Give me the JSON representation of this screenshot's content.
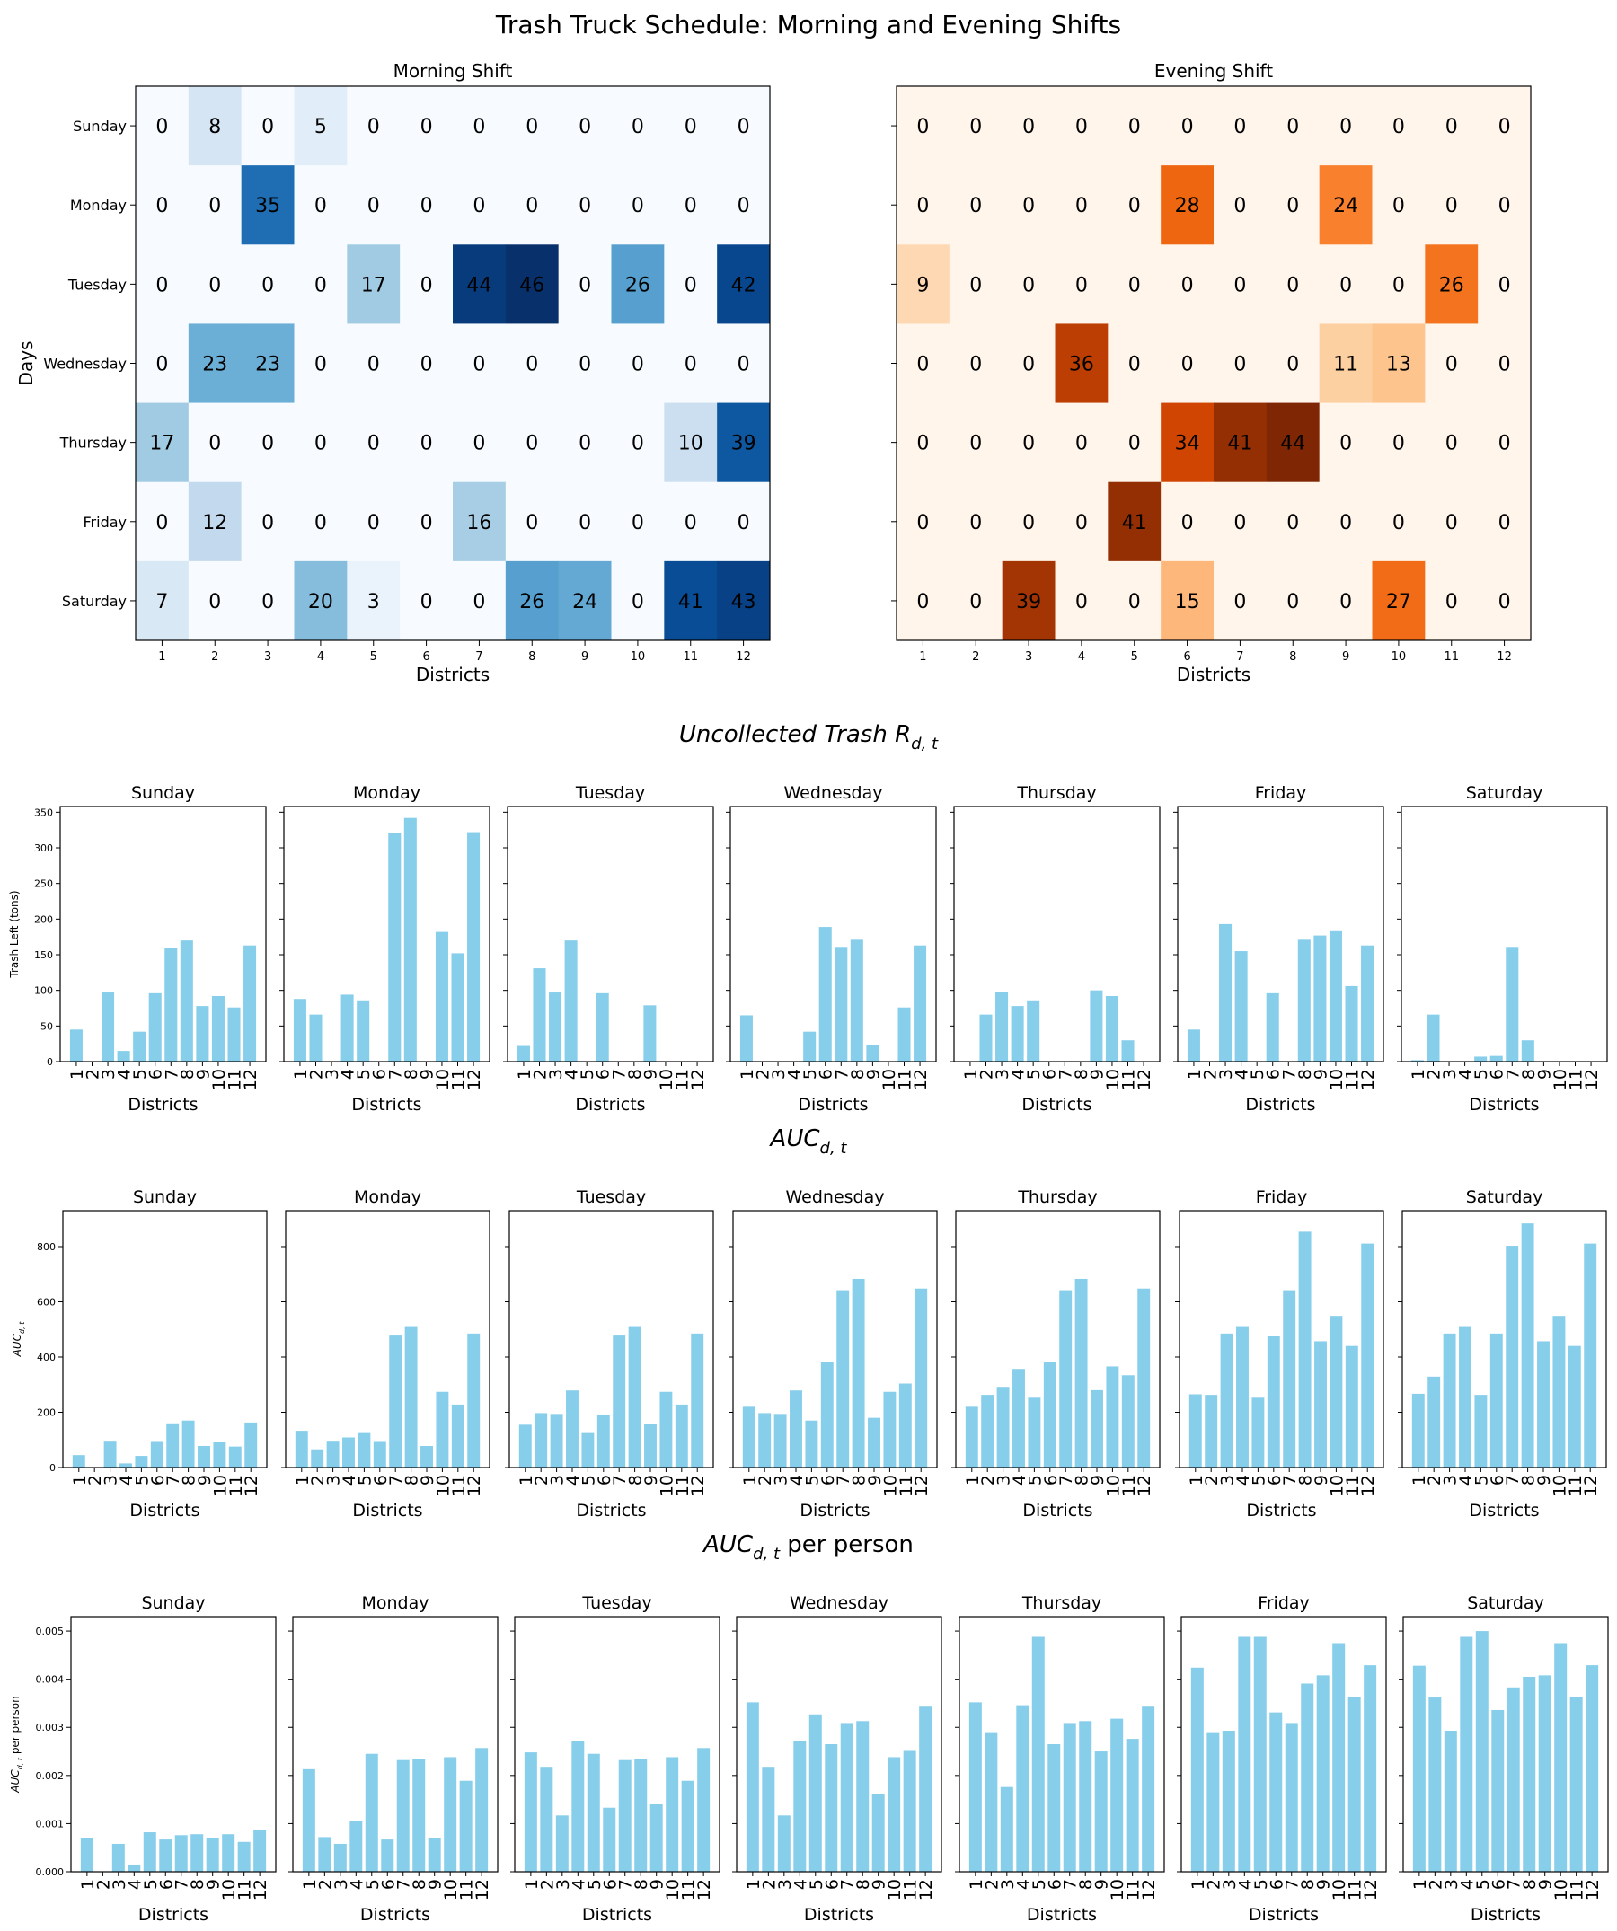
{
  "figure": {
    "title": "Trash Truck Schedule: Morning and Evening Shifts",
    "districts": [
      "1",
      "2",
      "3",
      "4",
      "5",
      "6",
      "7",
      "8",
      "9",
      "10",
      "11",
      "12"
    ],
    "days": [
      "Sunday",
      "Monday",
      "Tuesday",
      "Wednesday",
      "Thursday",
      "Friday",
      "Saturday"
    ]
  },
  "chart_data": [
    {
      "type": "heatmap",
      "title": "Morning Shift",
      "xlabel": "Districts",
      "ylabel": "Days",
      "colormap": "Blues",
      "vmax": 46,
      "rows": [
        "Sunday",
        "Monday",
        "Tuesday",
        "Wednesday",
        "Thursday",
        "Friday",
        "Saturday"
      ],
      "cols": [
        "1",
        "2",
        "3",
        "4",
        "5",
        "6",
        "7",
        "8",
        "9",
        "10",
        "11",
        "12"
      ],
      "values": [
        [
          0,
          8,
          0,
          5,
          0,
          0,
          0,
          0,
          0,
          0,
          0,
          0
        ],
        [
          0,
          0,
          35,
          0,
          0,
          0,
          0,
          0,
          0,
          0,
          0,
          0
        ],
        [
          0,
          0,
          0,
          0,
          17,
          0,
          44,
          46,
          0,
          26,
          0,
          42
        ],
        [
          0,
          23,
          23,
          0,
          0,
          0,
          0,
          0,
          0,
          0,
          0,
          0
        ],
        [
          17,
          0,
          0,
          0,
          0,
          0,
          0,
          0,
          0,
          0,
          10,
          39
        ],
        [
          0,
          12,
          0,
          0,
          0,
          0,
          16,
          0,
          0,
          0,
          0,
          0
        ],
        [
          7,
          0,
          0,
          20,
          3,
          0,
          0,
          26,
          24,
          0,
          41,
          43
        ]
      ]
    },
    {
      "type": "heatmap",
      "title": "Evening Shift",
      "xlabel": "Districts",
      "ylabel": "",
      "colormap": "Oranges",
      "vmax": 44,
      "rows": [
        "Sunday",
        "Monday",
        "Tuesday",
        "Wednesday",
        "Thursday",
        "Friday",
        "Saturday"
      ],
      "cols": [
        "1",
        "2",
        "3",
        "4",
        "5",
        "6",
        "7",
        "8",
        "9",
        "10",
        "11",
        "12"
      ],
      "values": [
        [
          0,
          0,
          0,
          0,
          0,
          0,
          0,
          0,
          0,
          0,
          0,
          0
        ],
        [
          0,
          0,
          0,
          0,
          0,
          28,
          0,
          0,
          24,
          0,
          0,
          0
        ],
        [
          9,
          0,
          0,
          0,
          0,
          0,
          0,
          0,
          0,
          0,
          26,
          0
        ],
        [
          0,
          0,
          0,
          36,
          0,
          0,
          0,
          0,
          11,
          13,
          0,
          0
        ],
        [
          0,
          0,
          0,
          0,
          0,
          34,
          41,
          44,
          0,
          0,
          0,
          0
        ],
        [
          0,
          0,
          0,
          0,
          41,
          0,
          0,
          0,
          0,
          0,
          0,
          0
        ],
        [
          0,
          0,
          39,
          0,
          0,
          15,
          0,
          0,
          0,
          27,
          0,
          0
        ]
      ]
    },
    {
      "type": "bar",
      "suptitle": "Uncollected Trash R",
      "suptitle_sub": "d, t",
      "ylabel": "Trash Left (tons)",
      "xlabel": "Districts",
      "ylim": [
        0,
        358
      ],
      "yticks": [
        0,
        50,
        100,
        150,
        200,
        250,
        300,
        350
      ],
      "ytick_labels": [
        "0",
        "50",
        "100",
        "150",
        "200",
        "250",
        "300",
        "350"
      ],
      "color": "#87ceeb",
      "series": [
        {
          "name": "Sunday",
          "values": [
            45,
            0,
            97,
            15,
            42,
            96,
            160,
            170,
            78,
            92,
            76,
            163
          ]
        },
        {
          "name": "Monday",
          "values": [
            88,
            66,
            0,
            94,
            86,
            0,
            321,
            342,
            0,
            182,
            152,
            322
          ]
        },
        {
          "name": "Tuesday",
          "values": [
            22,
            131,
            97,
            170,
            0,
            96,
            0,
            0,
            79,
            0,
            0,
            0
          ]
        },
        {
          "name": "Wednesday",
          "values": [
            65,
            0,
            0,
            0,
            42,
            189,
            161,
            171,
            23,
            0,
            76,
            163
          ]
        },
        {
          "name": "Thursday",
          "values": [
            0,
            66,
            98,
            78,
            86,
            0,
            0,
            0,
            100,
            92,
            30,
            0
          ]
        },
        {
          "name": "Friday",
          "values": [
            45,
            0,
            193,
            155,
            0,
            96,
            0,
            171,
            177,
            183,
            106,
            163
          ]
        },
        {
          "name": "Saturday",
          "values": [
            2,
            66,
            0,
            0,
            7,
            8,
            161,
            30,
            0,
            0,
            0,
            0
          ]
        }
      ]
    },
    {
      "type": "bar",
      "suptitle": "AUC",
      "suptitle_sub": "d, t",
      "ylabel": "AUC",
      "ylabel_sub": "d, t",
      "xlabel": "Districts",
      "ylim": [
        0,
        930
      ],
      "yticks": [
        0,
        200,
        400,
        600,
        800
      ],
      "ytick_labels": [
        "0",
        "200",
        "400",
        "600",
        "800"
      ],
      "color": "#87ceeb",
      "series": [
        {
          "name": "Sunday",
          "values": [
            45,
            0,
            97,
            15,
            42,
            96,
            160,
            170,
            78,
            92,
            76,
            163
          ]
        },
        {
          "name": "Monday",
          "values": [
            133,
            66,
            97,
            109,
            128,
            96,
            481,
            512,
            78,
            274,
            228,
            485
          ]
        },
        {
          "name": "Tuesday",
          "values": [
            155,
            197,
            194,
            279,
            128,
            192,
            481,
            512,
            157,
            274,
            228,
            485
          ]
        },
        {
          "name": "Wednesday",
          "values": [
            220,
            197,
            194,
            279,
            170,
            381,
            642,
            683,
            180,
            274,
            304,
            648
          ]
        },
        {
          "name": "Thursday",
          "values": [
            220,
            263,
            292,
            357,
            256,
            381,
            642,
            683,
            280,
            366,
            334,
            648
          ]
        },
        {
          "name": "Friday",
          "values": [
            265,
            263,
            485,
            512,
            256,
            477,
            642,
            854,
            457,
            549,
            440,
            811
          ]
        },
        {
          "name": "Saturday",
          "values": [
            267,
            329,
            485,
            512,
            263,
            485,
            803,
            884,
            457,
            549,
            440,
            811
          ]
        }
      ]
    },
    {
      "type": "bar",
      "suptitle": "AUC",
      "suptitle_sub": "d, t",
      "suptitle_suffix": " per person",
      "ylabel": "AUC",
      "ylabel_sub": "d, t",
      "ylabel_suffix": " per person",
      "xlabel": "Districts",
      "ylim": [
        0,
        0.0053
      ],
      "yticks": [
        0,
        0.001,
        0.002,
        0.003,
        0.004,
        0.005
      ],
      "ytick_labels": [
        "0.000",
        "0.001",
        "0.002",
        "0.003",
        "0.004",
        "0.005"
      ],
      "color": "#87ceeb",
      "series": [
        {
          "name": "Sunday",
          "values": [
            0.0007,
            0,
            0.00058,
            0.00015,
            0.00082,
            0.00067,
            0.00076,
            0.00078,
            0.0007,
            0.00078,
            0.00062,
            0.00086
          ]
        },
        {
          "name": "Monday",
          "values": [
            0.00213,
            0.00072,
            0.00058,
            0.00106,
            0.00245,
            0.00067,
            0.00232,
            0.00235,
            0.0007,
            0.00238,
            0.00189,
            0.00257
          ]
        },
        {
          "name": "Tuesday",
          "values": [
            0.00248,
            0.00218,
            0.00117,
            0.00271,
            0.00245,
            0.00133,
            0.00232,
            0.00235,
            0.0014,
            0.00238,
            0.00189,
            0.00257
          ]
        },
        {
          "name": "Wednesday",
          "values": [
            0.00352,
            0.00218,
            0.00117,
            0.00271,
            0.00327,
            0.00265,
            0.00309,
            0.00313,
            0.00162,
            0.00238,
            0.00251,
            0.00343
          ]
        },
        {
          "name": "Thursday",
          "values": [
            0.00352,
            0.0029,
            0.00176,
            0.00346,
            0.00488,
            0.00265,
            0.00309,
            0.00313,
            0.0025,
            0.00318,
            0.00276,
            0.00343
          ]
        },
        {
          "name": "Friday",
          "values": [
            0.00424,
            0.0029,
            0.00293,
            0.00488,
            0.00488,
            0.00331,
            0.00309,
            0.00391,
            0.00408,
            0.00475,
            0.00363,
            0.00429
          ]
        },
        {
          "name": "Saturday",
          "values": [
            0.00428,
            0.00362,
            0.00293,
            0.00488,
            0.005,
            0.00336,
            0.00383,
            0.00405,
            0.00408,
            0.00475,
            0.00363,
            0.00429
          ]
        }
      ]
    }
  ]
}
